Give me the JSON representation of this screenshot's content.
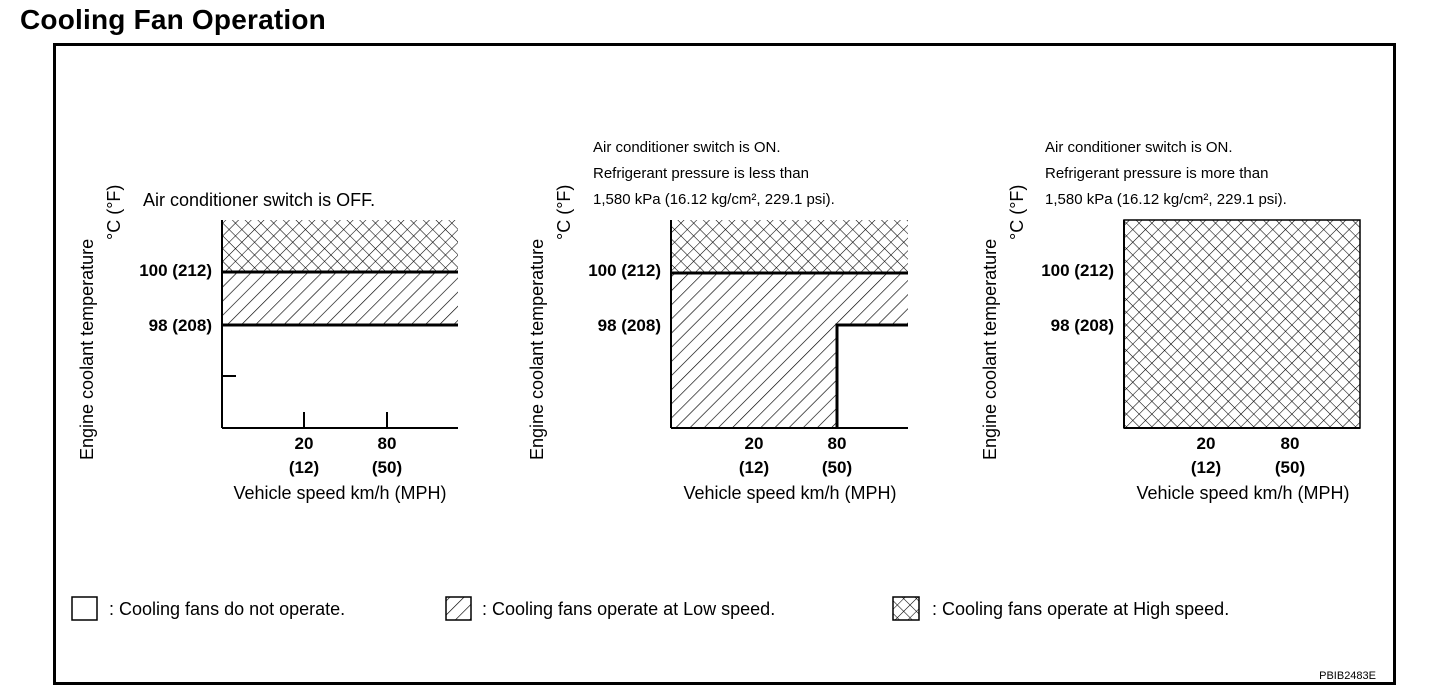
{
  "title": "Cooling Fan Operation",
  "y_axis_label_line1": "Engine coolant temperature",
  "y_axis_label_line2": "°C (°F)",
  "x_axis_label": "Vehicle speed km/h (MPH)",
  "y_ticks": {
    "upper": "100 (212)",
    "lower": "98 (208)"
  },
  "x_ticks": {
    "t20": {
      "kmh": "20",
      "mph": "(12)"
    },
    "t80": {
      "kmh": "80",
      "mph": "(50)"
    }
  },
  "panels": [
    {
      "condition": [
        "Air conditioner switch is OFF."
      ]
    },
    {
      "condition": [
        "Air conditioner switch is ON.",
        "Refrigerant pressure is less than",
        "1,580 kPa (16.12 kg/cm², 229.1 psi)."
      ]
    },
    {
      "condition": [
        "Air conditioner switch is ON.",
        "Refrigerant pressure is more than",
        "1,580 kPa (16.12 kg/cm², 229.1 psi)."
      ]
    }
  ],
  "legend": {
    "none": ": Cooling fans do not operate.",
    "low": ": Cooling fans operate at Low speed.",
    "high": ": Cooling fans operate at High speed."
  },
  "figure_code": "PBIB2483E"
}
